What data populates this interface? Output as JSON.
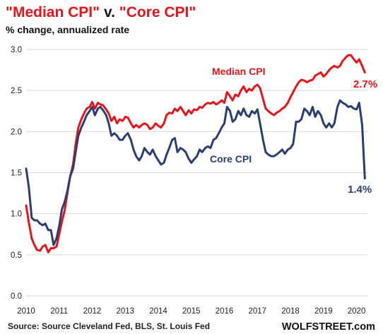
{
  "chart_data": {
    "type": "line",
    "title_parts": [
      {
        "text": "\"Median CPI\"",
        "color": "#e8141c"
      },
      {
        "text": " v. ",
        "color": "#1a1a1a"
      },
      {
        "text": "\"Core CPI\"",
        "color": "#e8141c"
      }
    ],
    "subtitle": "% change, annualized rate",
    "ylim": [
      0,
      3.0
    ],
    "yticks": [
      "0.0",
      "0.5",
      "1.0",
      "1.5",
      "2.0",
      "2.5",
      "3.0"
    ],
    "xlim": [
      2010,
      2020.33
    ],
    "xticks": [
      "2010",
      "2011",
      "2012",
      "2013",
      "2014",
      "2015",
      "2016",
      "2017",
      "2018",
      "2019",
      "2020"
    ],
    "grid": true,
    "series": [
      {
        "name": "Median CPI",
        "color": "#e8141c",
        "end_label": "2.7%",
        "points": [
          [
            2010.0,
            1.1
          ],
          [
            2010.08,
            0.9
          ],
          [
            2010.17,
            0.7
          ],
          [
            2010.25,
            0.62
          ],
          [
            2010.33,
            0.56
          ],
          [
            2010.42,
            0.55
          ],
          [
            2010.5,
            0.6
          ],
          [
            2010.58,
            0.62
          ],
          [
            2010.67,
            0.53
          ],
          [
            2010.75,
            0.58
          ],
          [
            2010.83,
            0.58
          ],
          [
            2010.92,
            0.6
          ],
          [
            2011.0,
            0.75
          ],
          [
            2011.08,
            0.9
          ],
          [
            2011.17,
            1.05
          ],
          [
            2011.25,
            1.25
          ],
          [
            2011.33,
            1.45
          ],
          [
            2011.42,
            1.6
          ],
          [
            2011.5,
            1.85
          ],
          [
            2011.58,
            2.05
          ],
          [
            2011.67,
            2.15
          ],
          [
            2011.75,
            2.22
          ],
          [
            2011.83,
            2.28
          ],
          [
            2011.92,
            2.3
          ],
          [
            2012.0,
            2.36
          ],
          [
            2012.08,
            2.28
          ],
          [
            2012.17,
            2.35
          ],
          [
            2012.25,
            2.33
          ],
          [
            2012.33,
            2.32
          ],
          [
            2012.42,
            2.27
          ],
          [
            2012.5,
            2.22
          ],
          [
            2012.58,
            2.13
          ],
          [
            2012.67,
            2.18
          ],
          [
            2012.75,
            2.1
          ],
          [
            2012.83,
            2.15
          ],
          [
            2012.92,
            2.13
          ],
          [
            2013.0,
            2.18
          ],
          [
            2013.08,
            2.17
          ],
          [
            2013.17,
            2.1
          ],
          [
            2013.25,
            2.05
          ],
          [
            2013.33,
            2.08
          ],
          [
            2013.42,
            2.05
          ],
          [
            2013.5,
            2.08
          ],
          [
            2013.58,
            2.1
          ],
          [
            2013.67,
            2.08
          ],
          [
            2013.75,
            2.03
          ],
          [
            2013.83,
            2.05
          ],
          [
            2013.92,
            2.1
          ],
          [
            2014.0,
            2.07
          ],
          [
            2014.08,
            2.05
          ],
          [
            2014.17,
            2.1
          ],
          [
            2014.25,
            2.2
          ],
          [
            2014.33,
            2.23
          ],
          [
            2014.42,
            2.22
          ],
          [
            2014.5,
            2.28
          ],
          [
            2014.58,
            2.25
          ],
          [
            2014.67,
            2.3
          ],
          [
            2014.75,
            2.25
          ],
          [
            2014.83,
            2.2
          ],
          [
            2014.92,
            2.26
          ],
          [
            2015.0,
            2.22
          ],
          [
            2015.08,
            2.27
          ],
          [
            2015.17,
            2.26
          ],
          [
            2015.25,
            2.3
          ],
          [
            2015.33,
            2.29
          ],
          [
            2015.42,
            2.33
          ],
          [
            2015.5,
            2.35
          ],
          [
            2015.58,
            2.34
          ],
          [
            2015.67,
            2.36
          ],
          [
            2015.75,
            2.33
          ],
          [
            2015.83,
            2.35
          ],
          [
            2015.92,
            2.38
          ],
          [
            2016.0,
            2.35
          ],
          [
            2016.08,
            2.48
          ],
          [
            2016.17,
            2.43
          ],
          [
            2016.25,
            2.38
          ],
          [
            2016.33,
            2.45
          ],
          [
            2016.42,
            2.43
          ],
          [
            2016.5,
            2.5
          ],
          [
            2016.58,
            2.55
          ],
          [
            2016.67,
            2.48
          ],
          [
            2016.75,
            2.52
          ],
          [
            2016.83,
            2.5
          ],
          [
            2016.92,
            2.55
          ],
          [
            2017.0,
            2.57
          ],
          [
            2017.08,
            2.53
          ],
          [
            2017.17,
            2.4
          ],
          [
            2017.25,
            2.28
          ],
          [
            2017.33,
            2.25
          ],
          [
            2017.42,
            2.22
          ],
          [
            2017.5,
            2.2
          ],
          [
            2017.58,
            2.23
          ],
          [
            2017.67,
            2.25
          ],
          [
            2017.75,
            2.28
          ],
          [
            2017.83,
            2.3
          ],
          [
            2017.92,
            2.35
          ],
          [
            2018.0,
            2.42
          ],
          [
            2018.08,
            2.48
          ],
          [
            2018.17,
            2.55
          ],
          [
            2018.25,
            2.6
          ],
          [
            2018.33,
            2.63
          ],
          [
            2018.42,
            2.62
          ],
          [
            2018.5,
            2.6
          ],
          [
            2018.58,
            2.62
          ],
          [
            2018.67,
            2.63
          ],
          [
            2018.75,
            2.68
          ],
          [
            2018.83,
            2.7
          ],
          [
            2018.92,
            2.72
          ],
          [
            2019.0,
            2.67
          ],
          [
            2019.08,
            2.7
          ],
          [
            2019.17,
            2.75
          ],
          [
            2019.25,
            2.78
          ],
          [
            2019.33,
            2.8
          ],
          [
            2019.42,
            2.78
          ],
          [
            2019.5,
            2.8
          ],
          [
            2019.58,
            2.86
          ],
          [
            2019.67,
            2.9
          ],
          [
            2019.75,
            2.93
          ],
          [
            2019.83,
            2.93
          ],
          [
            2019.92,
            2.88
          ],
          [
            2020.0,
            2.84
          ],
          [
            2020.08,
            2.88
          ],
          [
            2020.17,
            2.8
          ],
          [
            2020.25,
            2.72
          ]
        ]
      },
      {
        "name": "Core CPI",
        "color": "#2c3e6e",
        "end_label": "1.4%",
        "points": [
          [
            2010.0,
            1.55
          ],
          [
            2010.08,
            1.33
          ],
          [
            2010.17,
            0.95
          ],
          [
            2010.25,
            0.92
          ],
          [
            2010.33,
            0.92
          ],
          [
            2010.42,
            0.88
          ],
          [
            2010.5,
            0.86
          ],
          [
            2010.58,
            0.88
          ],
          [
            2010.67,
            0.8
          ],
          [
            2010.75,
            0.8
          ],
          [
            2010.83,
            0.62
          ],
          [
            2010.92,
            0.7
          ],
          [
            2011.0,
            0.85
          ],
          [
            2011.08,
            1.05
          ],
          [
            2011.17,
            1.15
          ],
          [
            2011.25,
            1.28
          ],
          [
            2011.33,
            1.45
          ],
          [
            2011.42,
            1.55
          ],
          [
            2011.5,
            1.75
          ],
          [
            2011.58,
            1.95
          ],
          [
            2011.67,
            2.05
          ],
          [
            2011.75,
            2.12
          ],
          [
            2011.83,
            2.2
          ],
          [
            2011.92,
            2.25
          ],
          [
            2012.0,
            2.3
          ],
          [
            2012.08,
            2.2
          ],
          [
            2012.17,
            2.28
          ],
          [
            2012.25,
            2.3
          ],
          [
            2012.33,
            2.26
          ],
          [
            2012.42,
            2.2
          ],
          [
            2012.5,
            2.1
          ],
          [
            2012.58,
            1.95
          ],
          [
            2012.67,
            1.98
          ],
          [
            2012.75,
            1.95
          ],
          [
            2012.83,
            1.9
          ],
          [
            2012.92,
            1.9
          ],
          [
            2013.0,
            1.95
          ],
          [
            2013.08,
            1.98
          ],
          [
            2013.17,
            1.9
          ],
          [
            2013.25,
            1.78
          ],
          [
            2013.33,
            1.7
          ],
          [
            2013.42,
            1.65
          ],
          [
            2013.5,
            1.7
          ],
          [
            2013.58,
            1.8
          ],
          [
            2013.67,
            1.75
          ],
          [
            2013.75,
            1.72
          ],
          [
            2013.83,
            1.78
          ],
          [
            2013.92,
            1.7
          ],
          [
            2014.0,
            1.65
          ],
          [
            2014.08,
            1.6
          ],
          [
            2014.17,
            1.62
          ],
          [
            2014.25,
            1.72
          ],
          [
            2014.33,
            1.8
          ],
          [
            2014.42,
            1.9
          ],
          [
            2014.5,
            1.92
          ],
          [
            2014.58,
            1.75
          ],
          [
            2014.67,
            1.8
          ],
          [
            2014.75,
            1.78
          ],
          [
            2014.83,
            1.75
          ],
          [
            2014.92,
            1.67
          ],
          [
            2015.0,
            1.62
          ],
          [
            2015.08,
            1.66
          ],
          [
            2015.17,
            1.7
          ],
          [
            2015.25,
            1.78
          ],
          [
            2015.33,
            1.75
          ],
          [
            2015.42,
            1.8
          ],
          [
            2015.5,
            1.82
          ],
          [
            2015.58,
            1.8
          ],
          [
            2015.67,
            1.9
          ],
          [
            2015.75,
            1.92
          ],
          [
            2015.83,
            1.98
          ],
          [
            2015.92,
            2.05
          ],
          [
            2016.0,
            2.1
          ],
          [
            2016.08,
            2.3
          ],
          [
            2016.17,
            2.25
          ],
          [
            2016.25,
            2.12
          ],
          [
            2016.33,
            2.15
          ],
          [
            2016.42,
            2.25
          ],
          [
            2016.5,
            2.2
          ],
          [
            2016.58,
            2.28
          ],
          [
            2016.67,
            2.2
          ],
          [
            2016.75,
            2.18
          ],
          [
            2016.83,
            2.25
          ],
          [
            2016.92,
            2.22
          ],
          [
            2017.0,
            2.27
          ],
          [
            2017.08,
            2.1
          ],
          [
            2017.17,
            1.9
          ],
          [
            2017.25,
            1.75
          ],
          [
            2017.33,
            1.72
          ],
          [
            2017.42,
            1.7
          ],
          [
            2017.5,
            1.7
          ],
          [
            2017.58,
            1.72
          ],
          [
            2017.67,
            1.75
          ],
          [
            2017.75,
            1.78
          ],
          [
            2017.83,
            1.73
          ],
          [
            2017.92,
            1.78
          ],
          [
            2018.0,
            1.8
          ],
          [
            2018.08,
            1.85
          ],
          [
            2018.17,
            2.12
          ],
          [
            2018.25,
            2.12
          ],
          [
            2018.33,
            2.15
          ],
          [
            2018.42,
            2.28
          ],
          [
            2018.5,
            2.25
          ],
          [
            2018.58,
            2.2
          ],
          [
            2018.67,
            2.3
          ],
          [
            2018.75,
            2.18
          ],
          [
            2018.83,
            2.25
          ],
          [
            2018.92,
            2.2
          ],
          [
            2019.0,
            2.1
          ],
          [
            2019.08,
            2.05
          ],
          [
            2019.17,
            2.1
          ],
          [
            2019.25,
            2.05
          ],
          [
            2019.33,
            2.1
          ],
          [
            2019.42,
            2.3
          ],
          [
            2019.5,
            2.38
          ],
          [
            2019.58,
            2.35
          ],
          [
            2019.67,
            2.33
          ],
          [
            2019.75,
            2.3
          ],
          [
            2019.83,
            2.31
          ],
          [
            2019.92,
            2.28
          ],
          [
            2020.0,
            2.27
          ],
          [
            2020.08,
            2.35
          ],
          [
            2020.17,
            2.08
          ],
          [
            2020.25,
            1.43
          ]
        ]
      }
    ],
    "source": "Source: Source Cleveland Fed, BLS, St. Louis Fed",
    "brand": "WOLFSTREET.com"
  }
}
